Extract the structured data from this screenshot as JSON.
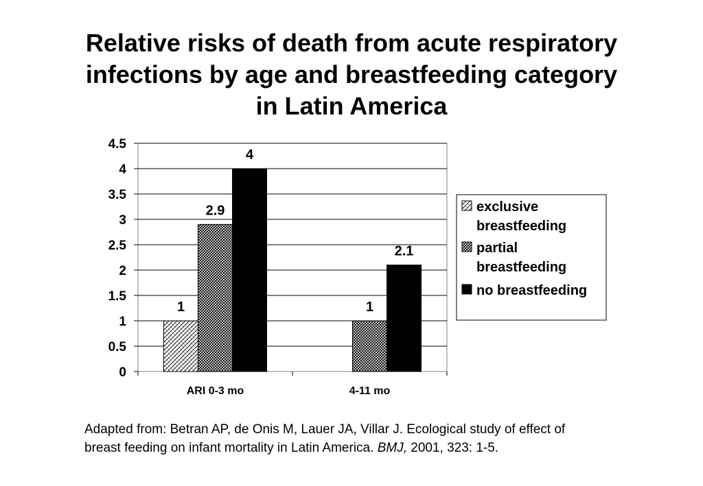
{
  "title_lines": [
    "Relative risks of death from acute respiratory",
    "infections by age and breastfeeding category",
    "in Latin America"
  ],
  "source": {
    "line1": "Adapted from: Betran AP, de Onis M, Lauer JA, Villar J. Ecological study of effect of",
    "line2_pre": "breast feeding on infant mortality in Latin America. ",
    "line2_journal": "BMJ,",
    "line2_post": " 2001, 323: 1-5."
  },
  "chart_data": {
    "type": "bar",
    "title": "Relative risks of death from acute respiratory infections by age and breastfeeding category in Latin America",
    "categories": [
      "ARI 0-3 mo",
      "4-11 mo"
    ],
    "series": [
      {
        "name": "exclusive breastfeeding",
        "values": [
          1,
          null
        ],
        "labels": [
          "1",
          ""
        ],
        "pattern": "crosshatch"
      },
      {
        "name": "partial breastfeeding",
        "values": [
          2.9,
          1
        ],
        "labels": [
          "2.9",
          "1"
        ],
        "pattern": "dense-hatch"
      },
      {
        "name": "no breastfeeding",
        "values": [
          4,
          2.1
        ],
        "labels": [
          "4",
          "2.1"
        ],
        "pattern": "solid"
      }
    ],
    "legend_lines": [
      [
        "exclusive",
        "breastfeeding"
      ],
      [
        "partial",
        "breastfeeding"
      ],
      [
        "no breastfeeding"
      ]
    ],
    "ylim": [
      0,
      4.5
    ],
    "yticks": [
      "0",
      "0.5",
      "1",
      "1.5",
      "2",
      "2.5",
      "3",
      "3.5",
      "4",
      "4.5"
    ],
    "grid": true,
    "legend_position": "right",
    "colors": {
      "bar_fill": "#000000",
      "bar_bg": "#ffffff",
      "grid": "#000000"
    }
  }
}
